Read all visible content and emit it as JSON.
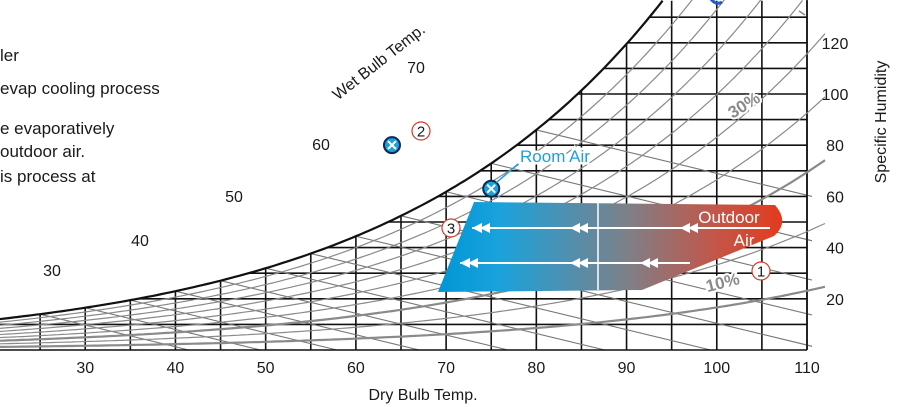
{
  "side_text": {
    "line1": "ler",
    "line2": "evap cooling process",
    "line3": "e evaporatively",
    "line4": "outdoor air.",
    "line5": "is process at"
  },
  "chart_data": {
    "type": "psychrometric-chart",
    "xlabel": "Dry Bulb Temp.",
    "ylabel": "Specific Humidity",
    "wetbulb_label": "Wet Bulb Temp.",
    "x_ticks": [
      30,
      40,
      50,
      60,
      70,
      80,
      90,
      100,
      110
    ],
    "xlim": [
      20,
      110
    ],
    "y_ticks": [
      20,
      40,
      60,
      80,
      100,
      120
    ],
    "ylim": [
      0,
      130
    ],
    "wetbulb_ticks": [
      "30",
      "40",
      "50",
      "60",
      "70"
    ],
    "rh_labels": [
      "10%",
      "30%"
    ],
    "points": {
      "room_air": {
        "label": "Room Air",
        "x": 75,
        "y": 63
      },
      "point2": {
        "x": 64,
        "y": 82
      },
      "outdoor_air": {
        "label_line1": "Outdoor",
        "label_line2": "Air"
      }
    },
    "markers": [
      "1",
      "2",
      "3"
    ],
    "colors": {
      "cool": "#0096d6",
      "hot": "#e0402a",
      "grid": "#111111",
      "curve": "#8a8a8a",
      "accent": "#1ea0dc"
    }
  }
}
